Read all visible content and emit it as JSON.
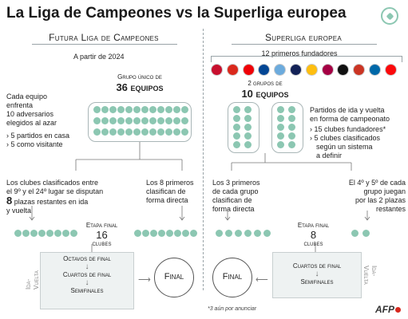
{
  "title": "La Liga de Campeones vs la Superliga europea",
  "left": {
    "header": "Futura Liga de Campeones",
    "from_year": "A partir de 2024",
    "group_label": "Grupo único de",
    "group_count": "36 equipos",
    "each_team": [
      "Cada equipo",
      "enfrenta",
      "10 adversarios",
      "elegidos al azar"
    ],
    "bullets": [
      "5 partidos en casa",
      "5 como visitante"
    ],
    "playoff_text_1": "Los clubes clasificados entre",
    "playoff_text_2": "el 9º y el 24º lugar se disputan",
    "playoff_num": "8",
    "playoff_text_3": "plazas restantes en ida",
    "playoff_text_4": "y vuelta",
    "direct_text": [
      "Los 8 primeros",
      "clasifican de",
      "forma directa"
    ],
    "final_stage_label": "Etapa final",
    "final_stage_count": "16",
    "final_stage_unit": "clubes",
    "side_label": "Ida-Vuelta",
    "rounds": [
      "Octavos de final",
      "Cuartos de final",
      "Semifinales"
    ],
    "final": "Final"
  },
  "right": {
    "header": "Superliga europea",
    "founders_label": "12 primeros fundadores",
    "groups_label": "2 grupos de",
    "groups_count": "10 equipos",
    "matches_text": [
      "Partidos de ida y vuelta",
      "en forma de campeonato"
    ],
    "bullets": [
      "15 clubes fundadores*",
      "5 clubes clasificados",
      "según un sistema",
      "a definir"
    ],
    "top3_text": [
      "Los 3 primeros",
      "de cada grupo",
      "clasifican de",
      "forma directa"
    ],
    "fourth_fifth_text": [
      "El 4º y 5º de cada",
      "grupo juegan",
      "por las 2 plazas",
      "restantes"
    ],
    "final_stage_label": "Etapa final",
    "final_stage_count": "8",
    "final_stage_unit": "clubes",
    "side_label": "Ida-Vuelta",
    "rounds": [
      "Cuartos de final",
      "Semifinales"
    ],
    "final": "Final",
    "footnote": "*3 aún por anunciar"
  },
  "source": "AFP",
  "colors": {
    "dot": "#8cc7b2",
    "box_fill": "#eef2f2",
    "afp_red": "#d6281e"
  },
  "club_logos": [
    {
      "name": "liverpool-logo",
      "color": "#c8102e"
    },
    {
      "name": "man-united-logo",
      "color": "#da291c"
    },
    {
      "name": "arsenal-logo",
      "color": "#ef0107"
    },
    {
      "name": "chelsea-logo",
      "color": "#034694"
    },
    {
      "name": "man-city-logo",
      "color": "#6cabdd"
    },
    {
      "name": "tottenham-logo",
      "color": "#132257"
    },
    {
      "name": "real-madrid-logo",
      "color": "#febe10"
    },
    {
      "name": "barcelona-logo",
      "color": "#a50044"
    },
    {
      "name": "juventus-logo",
      "color": "#111111"
    },
    {
      "name": "atletico-logo",
      "color": "#cb3524"
    },
    {
      "name": "inter-logo",
      "color": "#0068a8"
    },
    {
      "name": "ac-milan-logo",
      "color": "#fb090b"
    }
  ]
}
